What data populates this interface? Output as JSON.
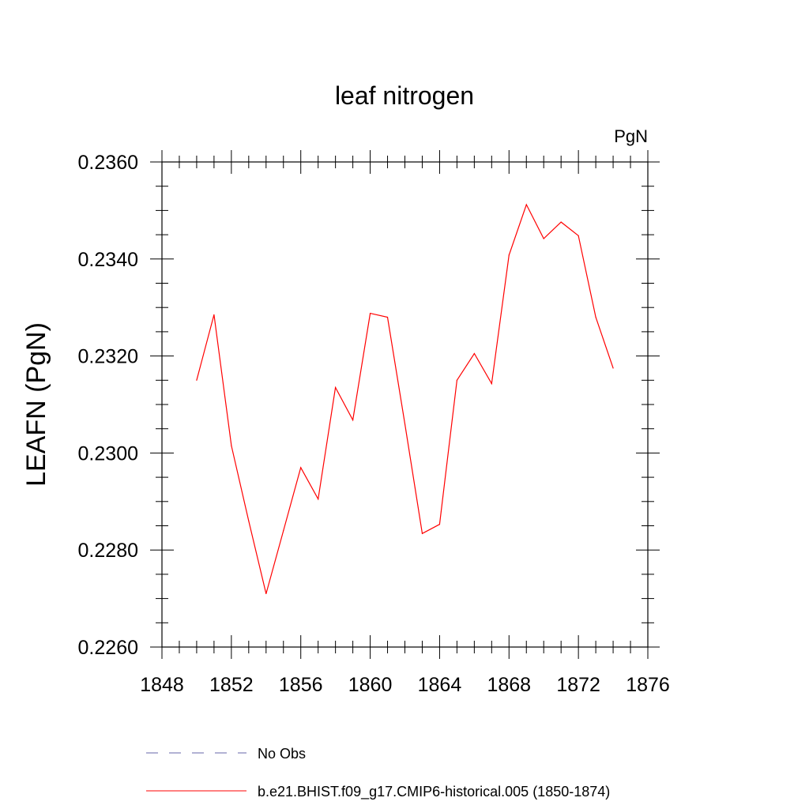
{
  "chart_data": {
    "type": "line",
    "title": "leaf nitrogen",
    "units_label": "PgN",
    "ylabel": "LEAFN  (PgN)",
    "xlabel": "",
    "xlim": [
      1848,
      1876
    ],
    "ylim": [
      0.226,
      0.236
    ],
    "x_ticks": [
      "1848",
      "1852",
      "1856",
      "1860",
      "1864",
      "1868",
      "1872",
      "1876"
    ],
    "y_ticks": [
      "0.2260",
      "0.2280",
      "0.2300",
      "0.2320",
      "0.2340",
      "0.2360"
    ],
    "grid": false,
    "legend_position": "bottom",
    "series": [
      {
        "name": "b.e21.BHIST.f09_g17.CMIP6-historical.005 (1850-1874)",
        "color": "#ff0000",
        "style": "solid",
        "x": [
          1850,
          1851,
          1852,
          1853,
          1854,
          1855,
          1856,
          1857,
          1858,
          1859,
          1860,
          1861,
          1862,
          1863,
          1864,
          1865,
          1866,
          1867,
          1868,
          1869,
          1870,
          1871,
          1872,
          1873,
          1874
        ],
        "values": [
          0.2315,
          0.23285,
          0.23015,
          0.2286,
          0.2271,
          0.2284,
          0.2297,
          0.22905,
          0.23135,
          0.23068,
          0.23288,
          0.2328,
          0.2306,
          0.22834,
          0.22853,
          0.2315,
          0.23205,
          0.23143,
          0.23408,
          0.23512,
          0.23442,
          0.23476,
          0.23448,
          0.2328,
          0.23175
        ]
      }
    ],
    "legend": [
      {
        "label": "No Obs",
        "color": "#6666aa",
        "style": "dashed"
      },
      {
        "label": "b.e21.BHIST.f09_g17.CMIP6-historical.005 (1850-1874)",
        "color": "#ff0000",
        "style": "solid"
      }
    ]
  }
}
